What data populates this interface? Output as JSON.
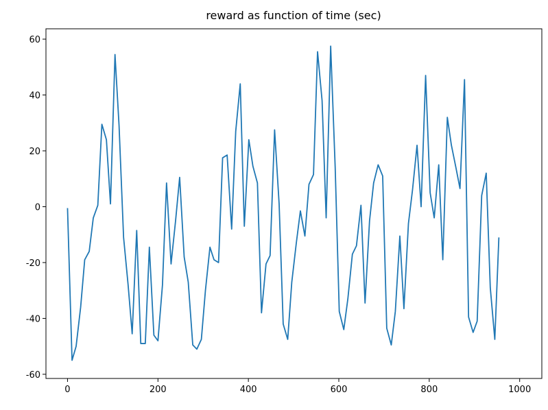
{
  "chart_data": {
    "type": "line",
    "title": "reward as function of time (sec)",
    "x": [
      0,
      10,
      19,
      29,
      38,
      48,
      57,
      67,
      76,
      86,
      95,
      105,
      114,
      124,
      134,
      143,
      153,
      162,
      172,
      181,
      191,
      200,
      210,
      219,
      229,
      239,
      248,
      258,
      267,
      277,
      286,
      296,
      305,
      315,
      324,
      334,
      343,
      353,
      363,
      372,
      382,
      391,
      401,
      410,
      420,
      429,
      439,
      448,
      458,
      468,
      477,
      487,
      496,
      506,
      515,
      525,
      534,
      544,
      553,
      563,
      572,
      582,
      592,
      601,
      611,
      620,
      630,
      639,
      649,
      658,
      668,
      677,
      687,
      697,
      706,
      716,
      725,
      735,
      744,
      754,
      763,
      773,
      782,
      792,
      802,
      811,
      821,
      830,
      840,
      849,
      859,
      868,
      878,
      887,
      897,
      906,
      916,
      926,
      935,
      945,
      954
    ],
    "series": [
      {
        "color": "#1f77b4",
        "values": [
          -0.5,
          -55,
          -50,
          -36,
          -19,
          -16,
          -4,
          0.5,
          29.5,
          24,
          1,
          54.5,
          29,
          -11,
          -28,
          -45.5,
          -8.5,
          -49,
          -49,
          -14.5,
          -46,
          -48,
          -28,
          8.5,
          -20.5,
          -5,
          10.5,
          -18,
          -27,
          -49.5,
          -51,
          -47.5,
          -30,
          -14.5,
          -19,
          -20,
          17.5,
          18.5,
          -8,
          27,
          44,
          -7,
          24,
          14.5,
          8.5,
          -38,
          -20.5,
          -17.5,
          27.5,
          1,
          -42,
          -47.5,
          -27,
          -13,
          -1.5,
          -10.5,
          8,
          11.5,
          55.5,
          38,
          -4,
          57.5,
          14,
          -37.5,
          -44,
          -33,
          -17,
          -14,
          0.5,
          -34.5,
          -5,
          8.5,
          15,
          11,
          -43.5,
          -49.5,
          -37.5,
          -10.5,
          -36.5,
          -6,
          6,
          22,
          0,
          47,
          5,
          -4,
          15,
          -19,
          32,
          22,
          14,
          6.5,
          45.5,
          -39.5,
          -45,
          -41,
          4,
          12,
          -29,
          -47.5,
          -11
        ]
      }
    ],
    "xlim": [
      -47.7,
      1049
    ],
    "ylim": [
      -61.5,
      63.7
    ],
    "xticks": [
      0,
      200,
      400,
      600,
      800,
      1000
    ],
    "yticks": [
      -60,
      -40,
      -20,
      0,
      20,
      40,
      60
    ]
  }
}
